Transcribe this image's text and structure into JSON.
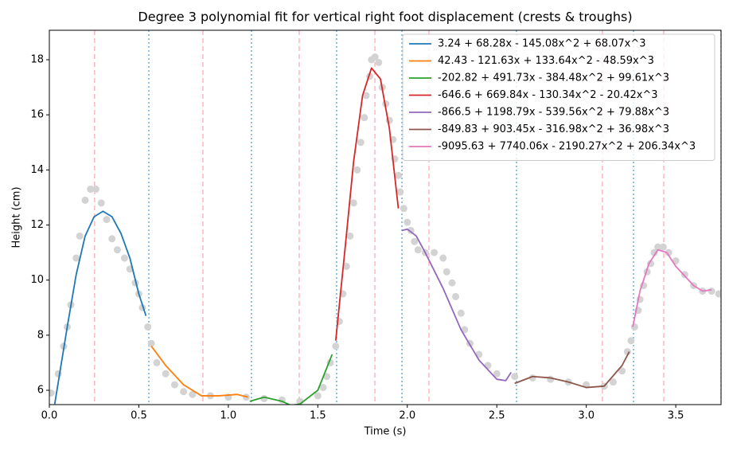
{
  "chart_data": {
    "type": "line",
    "title": "Degree 3 polynomial fit for vertical right foot displacement (crests & troughs)",
    "x_label": "Time (s)",
    "y_label": "Height (cm)",
    "xlim": [
      0,
      3.753
    ],
    "ylim": [
      5.48,
      19.07
    ],
    "xticks": [
      {
        "value": 0,
        "label": "0.0"
      },
      0.5,
      {
        "value": 1,
        "label": "1.0"
      },
      1.5,
      {
        "value": 2,
        "label": "2.0"
      },
      2.5,
      {
        "value": 3,
        "label": "3.0"
      },
      3.5
    ],
    "yticks": [
      6,
      8,
      10,
      12,
      14,
      16,
      18
    ],
    "grid": false,
    "legend": "upper right",
    "scatter": {
      "color": "#d3d3d3",
      "x": [
        0.01,
        0.05,
        0.08,
        0.1,
        0.12,
        0.15,
        0.17,
        0.2,
        0.23,
        0.26,
        0.29,
        0.32,
        0.35,
        0.38,
        0.42,
        0.45,
        0.48,
        0.5,
        0.52,
        0.55,
        0.57,
        0.6,
        0.65,
        0.7,
        0.75,
        0.8,
        0.9,
        1.0,
        1.1,
        1.2,
        1.3,
        1.4,
        1.5,
        1.53,
        1.55,
        1.57,
        1.6,
        1.62,
        1.64,
        1.66,
        1.68,
        1.7,
        1.72,
        1.74,
        1.76,
        1.77,
        1.79,
        1.8,
        1.82,
        1.84,
        1.86,
        1.88,
        1.9,
        1.92,
        1.93,
        1.95,
        1.96,
        1.98,
        2.0,
        2.02,
        2.04,
        2.06,
        2.1,
        2.15,
        2.2,
        2.22,
        2.25,
        2.27,
        2.3,
        2.32,
        2.35,
        2.4,
        2.45,
        2.5,
        2.6,
        2.7,
        2.8,
        2.9,
        3.0,
        3.1,
        3.15,
        3.2,
        3.23,
        3.25,
        3.27,
        3.29,
        3.3,
        3.32,
        3.34,
        3.36,
        3.38,
        3.4,
        3.43,
        3.46,
        3.5,
        3.55,
        3.6,
        3.65,
        3.7,
        3.74
      ],
      "values": [
        5.9,
        6.6,
        7.6,
        8.3,
        9.1,
        10.8,
        11.6,
        12.9,
        13.3,
        13.3,
        12.8,
        12.2,
        11.5,
        11.1,
        10.8,
        10.4,
        9.9,
        9.5,
        9.0,
        8.3,
        7.7,
        7.0,
        6.6,
        6.2,
        5.95,
        5.85,
        5.8,
        5.75,
        5.75,
        5.7,
        5.65,
        5.6,
        5.8,
        6.1,
        6.5,
        7.0,
        7.6,
        8.5,
        9.5,
        10.5,
        11.6,
        12.8,
        14.0,
        15.0,
        15.9,
        16.7,
        17.4,
        18.0,
        18.1,
        17.9,
        17.0,
        16.4,
        15.8,
        15.1,
        14.4,
        13.8,
        13.2,
        12.6,
        12.1,
        11.8,
        11.4,
        11.1,
        11.0,
        11.0,
        10.8,
        10.3,
        9.9,
        9.4,
        8.8,
        8.2,
        7.7,
        7.3,
        6.9,
        6.6,
        6.5,
        6.45,
        6.4,
        6.3,
        6.2,
        6.15,
        6.3,
        6.7,
        7.4,
        7.8,
        8.3,
        8.9,
        9.3,
        9.8,
        10.3,
        10.6,
        11.0,
        11.2,
        11.2,
        11.0,
        10.7,
        10.2,
        9.8,
        9.6,
        9.6,
        9.5
      ]
    },
    "series": [
      {
        "name": "3.24 + 68.28x - 145.08x^2 + 68.07x^3",
        "color": "#1f77b4",
        "x": [
          0.03,
          0.1,
          0.15,
          0.2,
          0.25,
          0.3,
          0.35,
          0.4,
          0.45,
          0.5,
          0.54
        ],
        "values": [
          5.5,
          8.3,
          10.2,
          11.6,
          12.3,
          12.5,
          12.3,
          11.7,
          10.8,
          9.5,
          8.7
        ]
      },
      {
        "name": "42.43 - 121.63x + 133.64x^2 - 48.59x^3",
        "color": "#ff7f0e",
        "x": [
          0.57,
          0.65,
          0.75,
          0.85,
          0.95,
          1.05,
          1.11
        ],
        "values": [
          7.6,
          6.9,
          6.2,
          5.8,
          5.8,
          5.85,
          5.75
        ]
      },
      {
        "name": "-202.82 + 491.73x - 384.48x^2 + 99.61x^3",
        "color": "#2ca02c",
        "x": [
          1.12,
          1.2,
          1.3,
          1.35,
          1.4,
          1.5,
          1.58
        ],
        "values": [
          5.6,
          5.75,
          5.6,
          5.45,
          5.5,
          6.0,
          7.3
        ]
      },
      {
        "name": "-646.6 + 669.84x - 130.34x^2 - 20.42x^3",
        "color": "#d62728",
        "x": [
          1.6,
          1.65,
          1.7,
          1.75,
          1.8,
          1.85,
          1.9,
          1.95
        ],
        "values": [
          7.8,
          11.0,
          14.3,
          16.7,
          17.7,
          17.3,
          15.5,
          12.6
        ]
      },
      {
        "name": "-866.5 + 1198.79x - 539.56x^2 + 79.88x^3",
        "color": "#9467bd",
        "x": [
          1.97,
          2.0,
          2.05,
          2.1,
          2.2,
          2.3,
          2.4,
          2.5,
          2.55,
          2.58
        ],
        "values": [
          11.8,
          11.85,
          11.6,
          11.0,
          9.7,
          8.2,
          7.1,
          6.4,
          6.35,
          6.65
        ]
      },
      {
        "name": "-849.83 + 903.45x - 316.98x^2 + 36.98x^3",
        "color": "#8c564b",
        "x": [
          2.6,
          2.7,
          2.8,
          2.9,
          3.0,
          3.1,
          3.2,
          3.24
        ],
        "values": [
          6.25,
          6.5,
          6.45,
          6.3,
          6.1,
          6.15,
          6.9,
          7.4
        ]
      },
      {
        "name": "-9095.63 + 7740.06x - 2190.27x^2 + 206.34x^3",
        "color": "#e377c2",
        "x": [
          3.26,
          3.3,
          3.35,
          3.4,
          3.45,
          3.5,
          3.6,
          3.65,
          3.7
        ],
        "values": [
          8.3,
          9.6,
          10.6,
          11.1,
          11.0,
          10.5,
          9.8,
          9.6,
          9.65
        ]
      }
    ],
    "crest_trough_lines": {
      "color": "#ffb6c1",
      "x": [
        0.253,
        0.858,
        1.396,
        1.819,
        2.121,
        3.09,
        3.433
      ]
    },
    "segment_lines": {
      "color": "#6baed6",
      "x": [
        0.556,
        1.129,
        1.605,
        1.97,
        2.61,
        3.264,
        3.753
      ]
    }
  }
}
